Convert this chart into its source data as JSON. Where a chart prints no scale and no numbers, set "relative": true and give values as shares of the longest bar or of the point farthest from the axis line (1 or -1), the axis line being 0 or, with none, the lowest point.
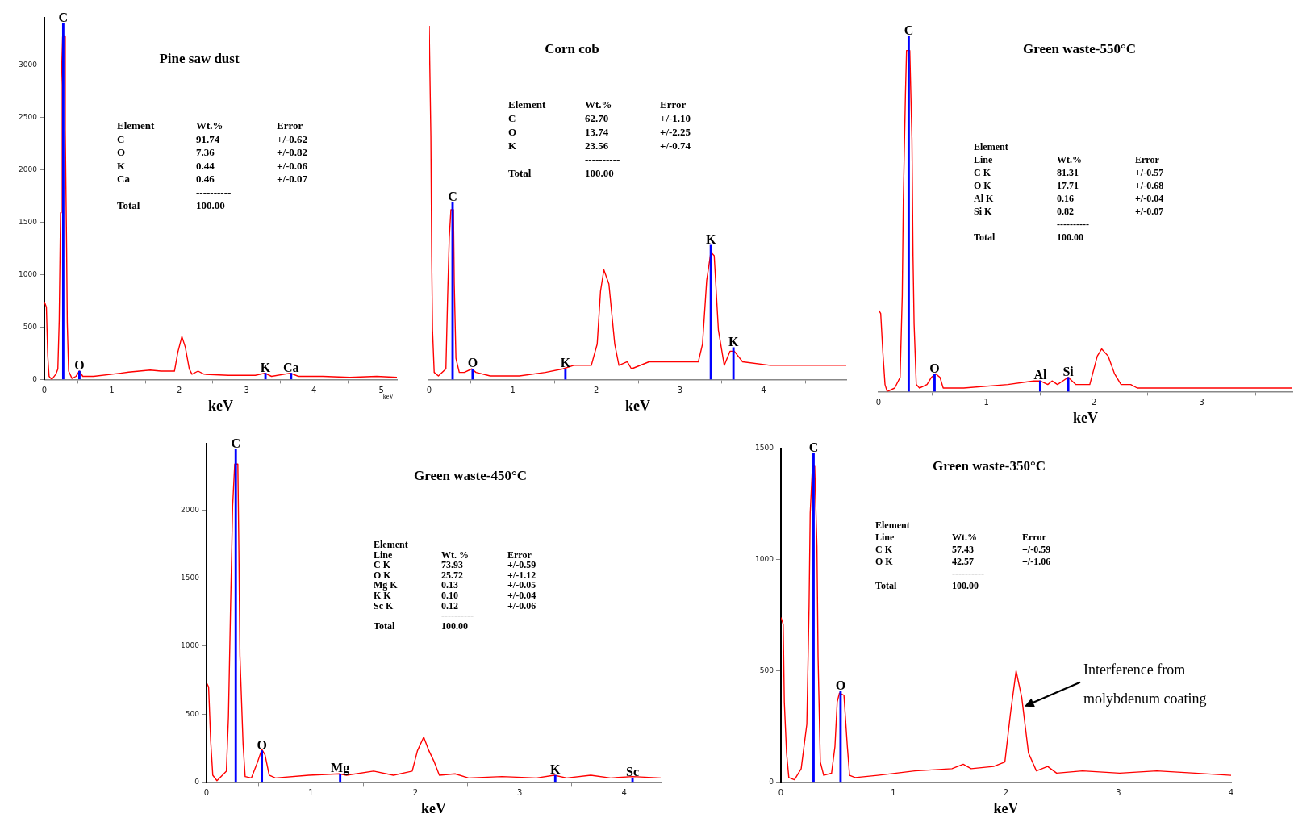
{
  "chart_data": [
    {
      "type": "line",
      "title": "Pine saw dust",
      "xlabel": "keV",
      "xlim": [
        0,
        5.23
      ],
      "xticks": [
        0,
        1,
        2,
        3,
        4,
        5
      ],
      "ylim": [
        0,
        3450
      ],
      "yticks": [
        0,
        500,
        1000,
        1500,
        2000,
        2500,
        3000
      ],
      "marker": "none",
      "series": [
        {
          "color": "#ff0000",
          "x": [
            0,
            0.03,
            0.05,
            0.07,
            0.11,
            0.17,
            0.2,
            0.22,
            0.24,
            0.25,
            0.27,
            0.3,
            0.31,
            0.33,
            0.34,
            0.36,
            0.41,
            0.47,
            0.52,
            0.57,
            0.73,
            1.13,
            1.25,
            1.57,
            1.73,
            1.93,
            1.98,
            2.04,
            2.09,
            2.15,
            2.19,
            2.28,
            2.37,
            2.73,
            3.13,
            3.27,
            3.37,
            3.65,
            3.77,
            4.13,
            4.53,
            4.93,
            5.23
          ],
          "values": [
            740,
            690,
            230,
            30,
            0,
            50,
            100,
            560,
            1590,
            2810,
            3270,
            3270,
            2380,
            1250,
            540,
            80,
            10,
            30,
            80,
            30,
            30,
            60,
            70,
            90,
            80,
            80,
            260,
            410,
            310,
            100,
            50,
            80,
            50,
            40,
            40,
            60,
            30,
            60,
            30,
            30,
            20,
            30,
            20
          ]
        },
        {
          "type": "bar",
          "color": "#0000ff",
          "x": [
            0.28,
            0.52,
            3.28,
            3.66
          ],
          "values": [
            3400,
            80,
            60,
            60
          ]
        }
      ],
      "annotations": [
        {
          "text": "C",
          "x": 0.28,
          "y": 3400
        },
        {
          "text": "O",
          "x": 0.52,
          "y": 80
        },
        {
          "text": "K",
          "x": 3.28,
          "y": 60
        },
        {
          "text": "Ca",
          "x": 3.66,
          "y": 60
        },
        "keV",
        "Element\tWt.%\tError",
        "C\t91.74\t+/-0.62",
        "O\t7.36\t+/-0.82",
        "K\t0.44\t+/-0.06",
        "Ca\t0.46\t+/-0.07",
        "\t----------",
        "Total\t100.00"
      ]
    },
    {
      "type": "line",
      "title": "Corn cob",
      "xlabel": "keV",
      "xlim": [
        0,
        4.99
      ],
      "xticks": [
        0,
        1,
        2,
        3,
        4
      ],
      "relative": true,
      "marker": "none",
      "series": [
        {
          "color": "#ff0000",
          "x": [
            0,
            0.02,
            0.03,
            0.04,
            0.06,
            0.11,
            0.2,
            0.22,
            0.24,
            0.26,
            0.29,
            0.3,
            0.32,
            0.36,
            0.42,
            0.51,
            0.56,
            0.73,
            1.08,
            1.39,
            1.6,
            1.73,
            1.94,
            2.01,
            2.05,
            2.09,
            2.15,
            2.22,
            2.27,
            2.37,
            2.42,
            2.63,
            2.87,
            3.22,
            3.27,
            3.32,
            3.37,
            3.41,
            3.46,
            3.53,
            3.6,
            3.65,
            3.75,
            4.08,
            4.42,
            4.77,
            4.99
          ],
          "values": [
            1,
            0.69,
            0.35,
            0.14,
            0.02,
            0.01,
            0.03,
            0.23,
            0.4,
            0.48,
            0.48,
            0.27,
            0.06,
            0.02,
            0.02,
            0.03,
            0.02,
            0.01,
            0.01,
            0.02,
            0.03,
            0.04,
            0.04,
            0.1,
            0.25,
            0.31,
            0.27,
            0.1,
            0.04,
            0.05,
            0.03,
            0.05,
            0.05,
            0.05,
            0.1,
            0.28,
            0.36,
            0.35,
            0.14,
            0.04,
            0.08,
            0.08,
            0.05,
            0.04,
            0.04,
            0.04,
            0.04
          ]
        },
        {
          "type": "bar",
          "color": "#0000ff",
          "x": [
            0.28,
            0.52,
            1.63,
            3.37,
            3.64
          ],
          "values": [
            0.5,
            0.03,
            0.03,
            0.38,
            0.09
          ]
        }
      ],
      "annotations": [
        {
          "text": "C",
          "x": 0.28,
          "y": 0.5
        },
        {
          "text": "O",
          "x": 0.52,
          "y": 0.03
        },
        {
          "text": "K",
          "x": 1.63,
          "y": 0.03
        },
        {
          "text": "K",
          "x": 3.37,
          "y": 0.38
        },
        {
          "text": "K",
          "x": 3.64,
          "y": 0.09
        },
        "Element\tWt.%\tError",
        "C\t62.70\t+/-1.10",
        "O\t13.74\t+/-2.25",
        "K\t23.56\t+/-0.74",
        "\t----------",
        "Total\t100.00"
      ]
    },
    {
      "type": "line",
      "title": "Green waste-550°C",
      "xlabel": "keV",
      "xlim": [
        0,
        3.84
      ],
      "xticks": [
        0,
        1,
        2,
        3
      ],
      "relative": true,
      "marker": "none",
      "series": [
        {
          "color": "#ff0000",
          "x": [
            0,
            0.02,
            0.04,
            0.06,
            0.08,
            0.15,
            0.2,
            0.22,
            0.23,
            0.25,
            0.26,
            0.29,
            0.31,
            0.32,
            0.33,
            0.35,
            0.38,
            0.45,
            0.49,
            0.53,
            0.57,
            0.6,
            0.79,
            1.2,
            1.44,
            1.5,
            1.57,
            1.61,
            1.66,
            1.76,
            1.83,
            1.96,
            2.03,
            2.07,
            2.13,
            2.19,
            2.25,
            2.34,
            2.4,
            2.7,
            3.11,
            3.51,
            3.84
          ],
          "values": [
            0.23,
            0.22,
            0.11,
            0.02,
            0,
            0.01,
            0.04,
            0.27,
            0.54,
            0.84,
            0.96,
            0.96,
            0.71,
            0.38,
            0.19,
            0.02,
            0.01,
            0.02,
            0.04,
            0.05,
            0.04,
            0.01,
            0.01,
            0.02,
            0.03,
            0.03,
            0.02,
            0.03,
            0.02,
            0.04,
            0.02,
            0.02,
            0.1,
            0.12,
            0.1,
            0.05,
            0.02,
            0.02,
            0.01,
            0.01,
            0.01,
            0.01,
            0.01
          ]
        },
        {
          "type": "bar",
          "color": "#0000ff",
          "x": [
            0.28,
            0.52,
            1.5,
            1.76
          ],
          "values": [
            1,
            0.05,
            0.03,
            0.04
          ]
        }
      ],
      "annotations": [
        {
          "text": "C",
          "x": 0.28,
          "y": 1
        },
        {
          "text": "O",
          "x": 0.52,
          "y": 0.05
        },
        {
          "text": "Al",
          "x": 1.5,
          "y": 0.03
        },
        {
          "text": "Si",
          "x": 1.76,
          "y": 0.04
        },
        "Element",
        "Line\tWt.%\tError",
        "C K\t81.31\t+/-0.57",
        "O K\t17.71\t+/-0.68",
        "Al K\t0.16\t+/-0.04",
        "Si K\t0.82\t+/-0.07",
        "\t----------",
        "Total\t100.00"
      ]
    },
    {
      "type": "line",
      "title": "Green waste-450°C",
      "xlabel": "keV",
      "xlim": [
        0,
        4.35
      ],
      "xticks": [
        0,
        1,
        2,
        3,
        4
      ],
      "ylim": [
        0,
        2490
      ],
      "yticks": [
        0,
        500,
        1000,
        1500,
        2000
      ],
      "marker": "none",
      "series": [
        {
          "color": "#ff0000",
          "x": [
            0,
            0.02,
            0.04,
            0.06,
            0.1,
            0.19,
            0.21,
            0.23,
            0.25,
            0.27,
            0.3,
            0.31,
            0.32,
            0.35,
            0.37,
            0.43,
            0.49,
            0.53,
            0.56,
            0.6,
            0.66,
            0.98,
            1.27,
            1.34,
            1.6,
            1.79,
            1.97,
            2.02,
            2.08,
            2.13,
            2.18,
            2.23,
            2.38,
            2.51,
            2.83,
            3.16,
            3.33,
            3.45,
            3.68,
            3.87,
            4.08,
            4.35
          ],
          "values": [
            730,
            700,
            300,
            50,
            10,
            80,
            480,
            1280,
            2030,
            2340,
            2340,
            1700,
            930,
            280,
            40,
            30,
            150,
            240,
            200,
            50,
            30,
            50,
            60,
            50,
            80,
            50,
            80,
            230,
            330,
            230,
            150,
            50,
            60,
            30,
            40,
            30,
            50,
            30,
            50,
            30,
            40,
            30
          ]
        },
        {
          "type": "bar",
          "color": "#0000ff",
          "x": [
            0.28,
            0.53,
            1.28,
            3.34,
            4.08
          ],
          "values": [
            2450,
            230,
            60,
            50,
            30
          ]
        }
      ],
      "annotations": [
        {
          "text": "C",
          "x": 0.28,
          "y": 2450
        },
        {
          "text": "O",
          "x": 0.53,
          "y": 230
        },
        {
          "text": "Mg",
          "x": 1.28,
          "y": 60
        },
        {
          "text": "K",
          "x": 3.34,
          "y": 50
        },
        {
          "text": "Sc",
          "x": 4.08,
          "y": 30
        },
        "Element",
        "Line\tWt. %\tError",
        "C K\t73.93\t+/-0.59",
        "O K\t25.72\t+/-1.12",
        "Mg K\t0.13\t+/-0.05",
        "K K\t0.10\t+/-0.04",
        "Sc K\t0.12\t+/-0.06",
        "\t----------",
        "Total\t100.00"
      ]
    },
    {
      "type": "line",
      "title": "Green waste-350°C",
      "xlabel": "keV",
      "xlim": [
        0,
        4
      ],
      "xticks": [
        0,
        1,
        2,
        3,
        4
      ],
      "ylim": [
        0,
        1500
      ],
      "yticks": [
        0,
        500,
        1000,
        1500
      ],
      "marker": "none",
      "series": [
        {
          "color": "#ff0000",
          "x": [
            0,
            0.02,
            0.03,
            0.05,
            0.07,
            0.12,
            0.18,
            0.23,
            0.25,
            0.26,
            0.28,
            0.3,
            0.32,
            0.33,
            0.35,
            0.38,
            0.45,
            0.48,
            0.5,
            0.52,
            0.56,
            0.59,
            0.61,
            0.66,
            0.86,
            1.19,
            1.52,
            1.62,
            1.69,
            1.89,
            1.99,
            2.04,
            2.09,
            2.14,
            2.2,
            2.27,
            2.37,
            2.45,
            2.68,
            3.01,
            3.34,
            3.68,
            4
          ],
          "values": [
            740,
            710,
            360,
            130,
            20,
            10,
            60,
            260,
            790,
            1210,
            1420,
            1420,
            1060,
            560,
            90,
            30,
            40,
            160,
            360,
            400,
            390,
            160,
            30,
            20,
            30,
            50,
            60,
            80,
            60,
            70,
            90,
            310,
            500,
            380,
            130,
            50,
            70,
            40,
            50,
            40,
            50,
            40,
            30
          ]
        },
        {
          "type": "bar",
          "color": "#0000ff",
          "x": [
            0.29,
            0.53
          ],
          "values": [
            1480,
            410
          ]
        }
      ],
      "annotations": [
        {
          "text": "C",
          "x": 0.29,
          "y": 1480
        },
        {
          "text": "O",
          "x": 0.53,
          "y": 410
        },
        {
          "text": "Interference from molybdenum coating",
          "x": 2.15,
          "y": 340
        },
        "Element",
        "Line\tWt.%\tError",
        "C K\t57.43\t+/-0.59",
        "O K\t42.57\t+/-1.06",
        "\t----------",
        "Total\t100.00"
      ]
    }
  ]
}
